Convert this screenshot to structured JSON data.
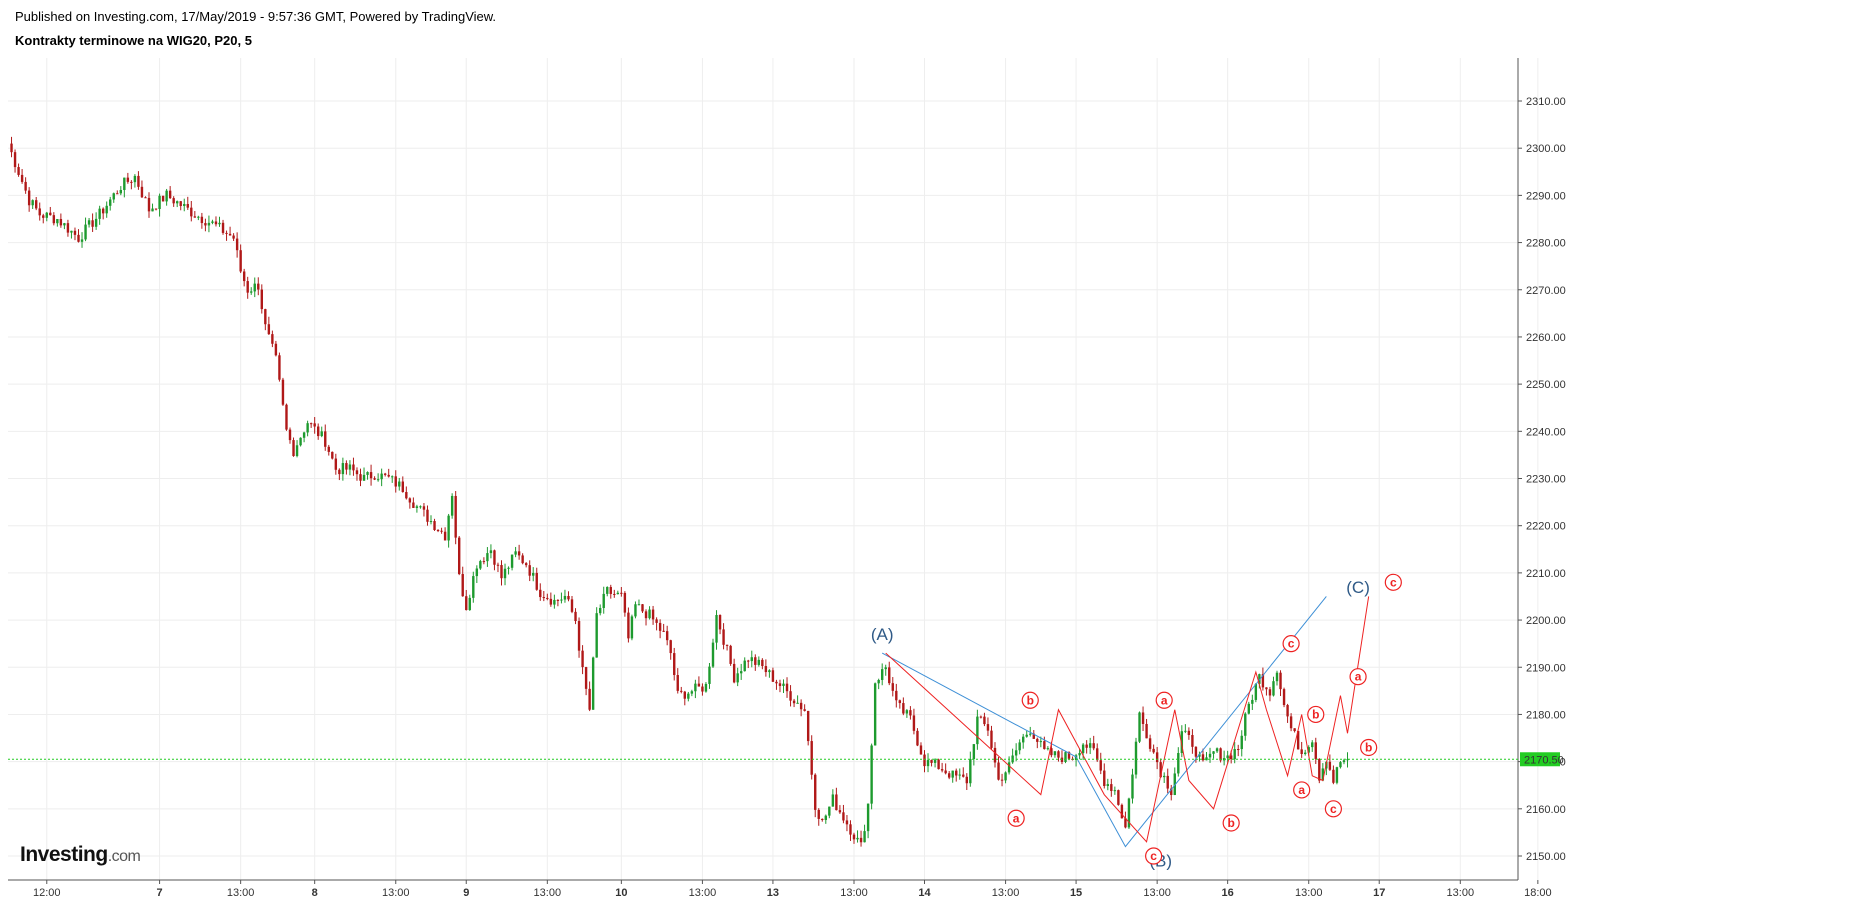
{
  "header": {
    "published": "Published on Investing.com, 17/May/2019 - 9:57:36 GMT, Powered by TradingView.",
    "title": "Kontrakty terminowe na WIG20, P20, 5"
  },
  "logo": {
    "name": "Investing",
    "suffix": ".com"
  },
  "chart_data": {
    "type": "candlestick",
    "title": "Kontrakty terminowe na WIG20, P20, 5",
    "ylim": [
      2146,
      2318
    ],
    "y_ticks": [
      2150.0,
      2160.0,
      2170.0,
      2180.0,
      2190.0,
      2200.0,
      2210.0,
      2220.0,
      2230.0,
      2240.0,
      2250.0,
      2260.0,
      2270.0,
      2280.0,
      2290.0,
      2300.0,
      2310.0
    ],
    "x_ticks": [
      "12:00",
      "7",
      "13:00",
      "8",
      "13:00",
      "9",
      "13:00",
      "10",
      "13:00",
      "13",
      "13:00",
      "14",
      "13:00",
      "15",
      "13:00",
      "16",
      "13:00",
      "17",
      "13:00",
      "18:00"
    ],
    "x_tick_index": [
      11,
      43,
      66,
      87,
      110,
      130,
      153,
      174,
      197,
      217,
      240,
      260,
      283,
      303,
      326,
      346,
      369,
      389,
      412,
      434
    ],
    "bold_x_ticks": [
      "7",
      "8",
      "9",
      "10",
      "13",
      "14",
      "15",
      "16",
      "17"
    ],
    "last_price": "2170.50",
    "colors": {
      "up": "#1d9a2e",
      "down": "#b01818",
      "grid": "#eeeeee",
      "last_price": "#22cc22",
      "wave_blue": "#3d8fd6",
      "wave_blue_text": "#2f5a87",
      "wave_red": "#ee2222"
    },
    "price_anchors": [
      [
        0,
        2301
      ],
      [
        3,
        2295
      ],
      [
        6,
        2289
      ],
      [
        9,
        2286
      ],
      [
        14,
        2285
      ],
      [
        20,
        2281
      ],
      [
        26,
        2286
      ],
      [
        32,
        2292
      ],
      [
        36,
        2294
      ],
      [
        40,
        2287
      ],
      [
        45,
        2290
      ],
      [
        49,
        2288
      ],
      [
        53,
        2286
      ],
      [
        58,
        2284
      ],
      [
        62,
        2282
      ],
      [
        64,
        2281
      ],
      [
        66,
        2274
      ],
      [
        68,
        2270
      ],
      [
        71,
        2271
      ],
      [
        73,
        2262
      ],
      [
        76,
        2255
      ],
      [
        79,
        2240
      ],
      [
        81,
        2236
      ],
      [
        85,
        2242
      ],
      [
        90,
        2238
      ],
      [
        93,
        2232
      ],
      [
        97,
        2232
      ],
      [
        101,
        2230
      ],
      [
        104,
        2231
      ],
      [
        108,
        2230
      ],
      [
        112,
        2228
      ],
      [
        116,
        2224
      ],
      [
        120,
        2221
      ],
      [
        124,
        2218
      ],
      [
        126,
        2227
      ],
      [
        128,
        2209
      ],
      [
        130,
        2203
      ],
      [
        133,
        2212
      ],
      [
        137,
        2215
      ],
      [
        140,
        2209
      ],
      [
        144,
        2214
      ],
      [
        147,
        2212
      ],
      [
        151,
        2206
      ],
      [
        155,
        2204
      ],
      [
        158,
        2205
      ],
      [
        161,
        2200
      ],
      [
        163,
        2189
      ],
      [
        165,
        2181
      ],
      [
        167,
        2201
      ],
      [
        170,
        2206
      ],
      [
        174,
        2205
      ],
      [
        176,
        2196
      ],
      [
        178,
        2203
      ],
      [
        182,
        2201
      ],
      [
        186,
        2197
      ],
      [
        188,
        2193
      ],
      [
        190,
        2184
      ],
      [
        194,
        2185
      ],
      [
        198,
        2186
      ],
      [
        201,
        2201
      ],
      [
        203,
        2196
      ],
      [
        206,
        2188
      ],
      [
        210,
        2192
      ],
      [
        214,
        2190
      ],
      [
        218,
        2187
      ],
      [
        222,
        2184
      ],
      [
        226,
        2181
      ],
      [
        229,
        2161
      ],
      [
        231,
        2157
      ],
      [
        234,
        2162
      ],
      [
        238,
        2157
      ],
      [
        242,
        2152
      ],
      [
        244,
        2161
      ],
      [
        246,
        2187
      ],
      [
        249,
        2190
      ],
      [
        252,
        2182
      ],
      [
        256,
        2179
      ],
      [
        260,
        2170
      ],
      [
        264,
        2169
      ],
      [
        268,
        2167
      ],
      [
        272,
        2166
      ],
      [
        275,
        2179
      ],
      [
        278,
        2177
      ],
      [
        281,
        2166
      ],
      [
        284,
        2169
      ],
      [
        287,
        2174
      ],
      [
        290,
        2177
      ],
      [
        294,
        2172
      ],
      [
        298,
        2171
      ],
      [
        302,
        2171
      ],
      [
        305,
        2174
      ],
      [
        308,
        2172
      ],
      [
        311,
        2166
      ],
      [
        314,
        2164
      ],
      [
        317,
        2156
      ],
      [
        321,
        2180
      ],
      [
        324,
        2174
      ],
      [
        327,
        2168
      ],
      [
        330,
        2164
      ],
      [
        333,
        2176
      ],
      [
        336,
        2174
      ],
      [
        339,
        2169
      ],
      [
        342,
        2172
      ],
      [
        346,
        2171
      ],
      [
        349,
        2173
      ],
      [
        352,
        2182
      ],
      [
        355,
        2188
      ],
      [
        358,
        2185
      ],
      [
        360,
        2190
      ],
      [
        362,
        2182
      ],
      [
        364,
        2177
      ],
      [
        367,
        2172
      ],
      [
        370,
        2175
      ],
      [
        372,
        2167
      ],
      [
        374,
        2171
      ],
      [
        376,
        2166
      ],
      [
        378,
        2170
      ],
      [
        380,
        2170.5
      ]
    ],
    "wave_blue_points": [
      [
        248,
        2193
      ],
      [
        303,
        2171
      ],
      [
        317,
        2152
      ],
      [
        374,
        2205
      ]
    ],
    "wave_red_points": [
      [
        249,
        2193
      ],
      [
        293,
        2163
      ],
      [
        298,
        2181
      ],
      [
        311,
        2163
      ],
      [
        323,
        2153
      ],
      [
        331,
        2181
      ],
      [
        335,
        2166
      ],
      [
        342,
        2160
      ],
      [
        354,
        2189
      ],
      [
        357,
        2181
      ],
      [
        363,
        2167
      ],
      [
        367,
        2180
      ],
      [
        370,
        2167
      ],
      [
        373,
        2166
      ],
      [
        378,
        2184
      ],
      [
        380,
        2176
      ],
      [
        386,
        2205
      ]
    ],
    "wave_labels": [
      {
        "text": "(A)",
        "i": 248,
        "y": 2197,
        "kind": "blue"
      },
      {
        "text": "(B)",
        "i": 327,
        "y": 2149,
        "kind": "blue"
      },
      {
        "text": "(C)",
        "i": 383,
        "y": 2207,
        "kind": "blue"
      },
      {
        "text": "a",
        "i": 286,
        "y": 2158,
        "kind": "red"
      },
      {
        "text": "b",
        "i": 290,
        "y": 2183,
        "kind": "red"
      },
      {
        "text": "c",
        "i": 325,
        "y": 2150,
        "kind": "red"
      },
      {
        "text": "a",
        "i": 328,
        "y": 2183,
        "kind": "red"
      },
      {
        "text": "b",
        "i": 347,
        "y": 2157,
        "kind": "red"
      },
      {
        "text": "c",
        "i": 364,
        "y": 2195,
        "kind": "red"
      },
      {
        "text": "a",
        "i": 367,
        "y": 2164,
        "kind": "red"
      },
      {
        "text": "b",
        "i": 371,
        "y": 2180,
        "kind": "red"
      },
      {
        "text": "c",
        "i": 376,
        "y": 2160,
        "kind": "red"
      },
      {
        "text": "a",
        "i": 383,
        "y": 2188,
        "kind": "red"
      },
      {
        "text": "b",
        "i": 386,
        "y": 2173,
        "kind": "red"
      },
      {
        "text": "c",
        "i": 393,
        "y": 2208,
        "kind": "red"
      }
    ]
  }
}
